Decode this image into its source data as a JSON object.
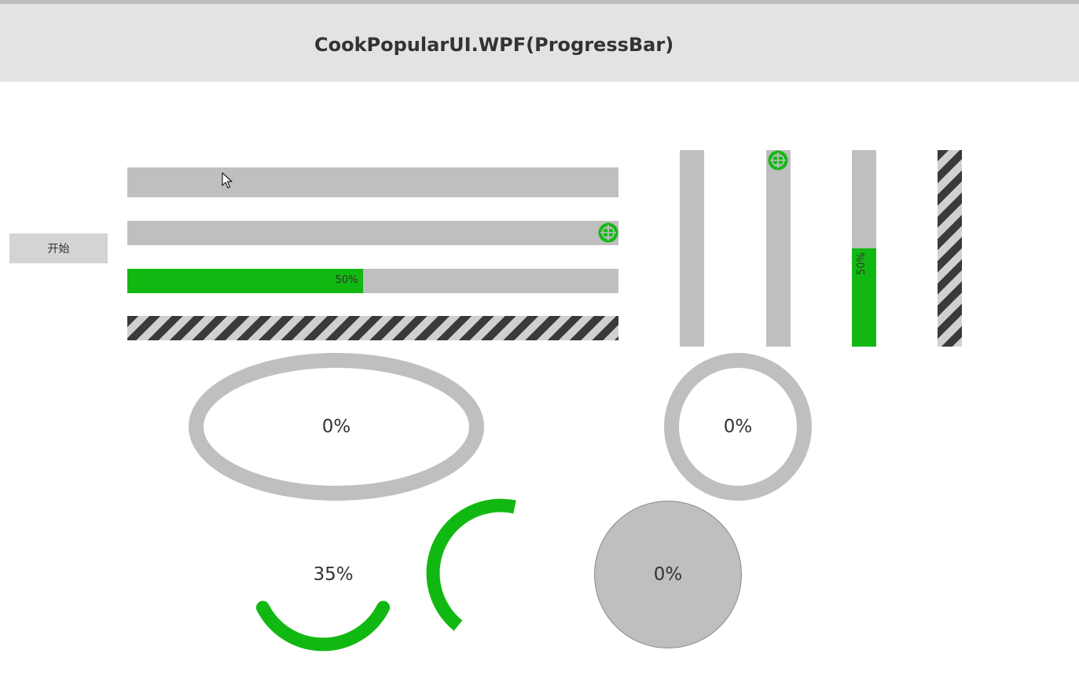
{
  "header": {
    "title": "CookPopularUI.WPF(ProgressBar)"
  },
  "controls": {
    "start_label": "开始"
  },
  "colors": {
    "accent": "#12b812",
    "track": "#bfbfbf",
    "header_bg": "#e3e3e3",
    "stripe_dark": "#3a3a3a",
    "stripe_light": "#d0d0d0"
  },
  "icons": {
    "spinner": "globe-spinner-icon",
    "cursor": "mouse-cursor-icon"
  },
  "horizontal_bars": {
    "plain": {
      "value": 0
    },
    "spinner": {
      "indeterminate": true
    },
    "labeled": {
      "value": 0.5,
      "label": "50%"
    },
    "striped": {
      "indeterminate": true
    }
  },
  "vertical_bars": {
    "plain": {
      "value": 0
    },
    "spinner": {
      "indeterminate": true
    },
    "labeled": {
      "value": 0.5,
      "label": "50%"
    },
    "striped": {
      "indeterminate": true
    }
  },
  "rings": {
    "ellipse": {
      "value": 0,
      "label": "0%"
    },
    "circle": {
      "value": 0,
      "label": "0%"
    },
    "arc": {
      "value": 0.35,
      "label": "35%"
    },
    "arc_spinner": {
      "indeterminate": true
    },
    "pie": {
      "value": 0,
      "label": "0%"
    }
  }
}
